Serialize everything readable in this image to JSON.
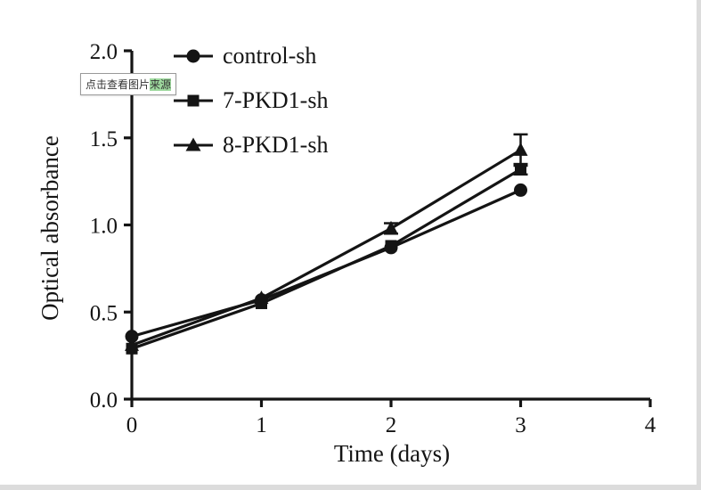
{
  "tooltip": {
    "text": "点击查看图片来源",
    "prefix": "点击查看图片",
    "highlight": "来源"
  },
  "chart_data": {
    "type": "line",
    "title": "",
    "xlabel": "Time (days)",
    "ylabel": "Optical absorbance",
    "x": [
      0,
      1,
      2,
      3
    ],
    "xlim": [
      0,
      4
    ],
    "ylim": [
      0,
      2
    ],
    "xticks": [
      0,
      1,
      2,
      3,
      4
    ],
    "yticks": [
      0,
      0.5,
      1.0,
      1.5,
      2.0
    ],
    "grid": false,
    "legend_position": "top-left-inside",
    "color": "#141414",
    "series": [
      {
        "name": "control-sh",
        "marker": "circle",
        "values": [
          0.36,
          0.57,
          0.87,
          1.2
        ],
        "errors": [
          0.02,
          0.02,
          0.02,
          0.02
        ]
      },
      {
        "name": "7-PKD1-sh",
        "marker": "square",
        "values": [
          0.29,
          0.55,
          0.88,
          1.32
        ],
        "errors": [
          0.02,
          0.02,
          0.02,
          0.03
        ]
      },
      {
        "name": "8-PKD1-sh",
        "marker": "triangle",
        "values": [
          0.31,
          0.58,
          0.98,
          1.43
        ],
        "errors": [
          0.02,
          0.02,
          0.03,
          0.09
        ]
      }
    ]
  }
}
